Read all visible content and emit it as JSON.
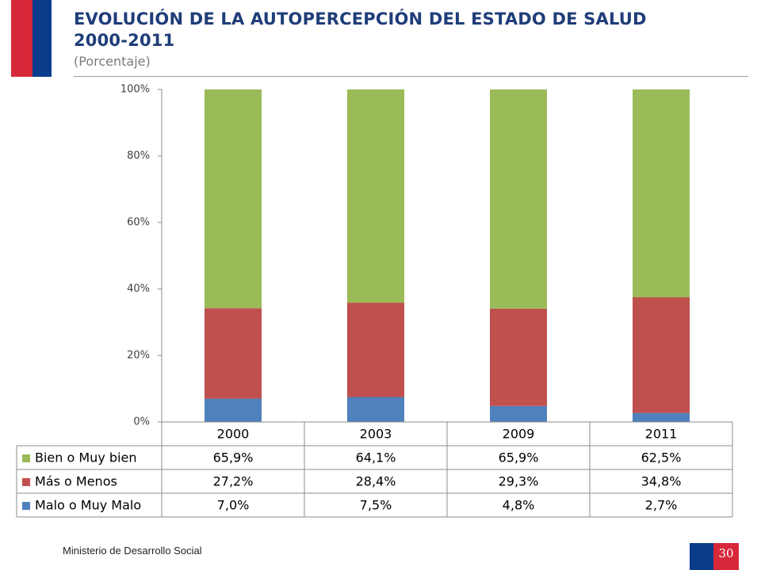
{
  "header": {
    "title_line1": "EVOLUCIÓN DE LA AUTOPERCEPCIÓN DEL ESTADO DE SALUD",
    "title_line2": "2000-2011",
    "subtitle": "(Porcentaje)"
  },
  "footer": {
    "organization": "Ministerio de Desarrollo Social",
    "page_number": "30"
  },
  "colors": {
    "bien": "#9bbb59",
    "mas_menos": "#c0504d",
    "malo": "#4f81bd",
    "flag_red": "#d62839",
    "flag_blue": "#0a3c8c",
    "title": "#1f3d79"
  },
  "chart_data": {
    "type": "bar",
    "stacked": true,
    "categories": [
      "2000",
      "2003",
      "2009",
      "2011"
    ],
    "ylim": [
      0,
      100
    ],
    "yticks": [
      "0%",
      "20%",
      "40%",
      "60%",
      "80%",
      "100%"
    ],
    "series": [
      {
        "name": "Malo o Muy Malo",
        "values": [
          7.0,
          7.5,
          4.8,
          2.7
        ],
        "labels": [
          "7,0%",
          "7,5%",
          "4,8%",
          "2,7%"
        ],
        "color": "#4f81bd"
      },
      {
        "name": "Más o Menos",
        "values": [
          27.2,
          28.4,
          29.3,
          34.8
        ],
        "labels": [
          "27,2%",
          "28,4%",
          "29,3%",
          "34,8%"
        ],
        "color": "#c0504d"
      },
      {
        "name": "Bien o Muy bien",
        "values": [
          65.9,
          64.1,
          65.9,
          62.5
        ],
        "labels": [
          "65,9%",
          "64,1%",
          "65,9%",
          "62,5%"
        ],
        "color": "#9bbb59"
      }
    ],
    "table_row_order": [
      "Bien o Muy bien",
      "Más o Menos",
      "Malo o Muy Malo"
    ],
    "grid": false,
    "legend": "data table below chart"
  }
}
